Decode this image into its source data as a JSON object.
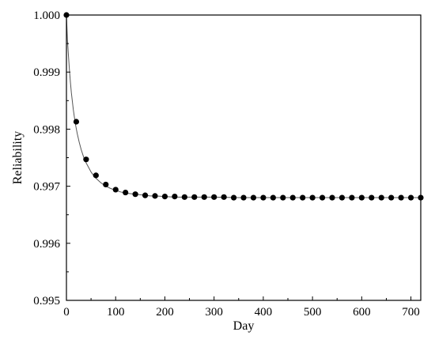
{
  "chart_data": {
    "type": "scatter",
    "title": "",
    "xlabel": "Day",
    "ylabel": "Reliability",
    "xlim": [
      0,
      720
    ],
    "ylim": [
      0.995,
      1.0
    ],
    "xticks": [
      0,
      100,
      200,
      300,
      400,
      500,
      600,
      700
    ],
    "yticks": [
      0.995,
      0.996,
      0.997,
      0.998,
      0.999,
      1.0
    ],
    "xtick_labels": [
      "0",
      "100",
      "200",
      "300",
      "400",
      "500",
      "600",
      "700"
    ],
    "ytick_labels": [
      "0.995",
      "0.996",
      "0.997",
      "0.998",
      "0.999",
      "1.000"
    ],
    "grid": false,
    "legend": "none",
    "series": [
      {
        "style": "markers",
        "color": "#000000",
        "x": [
          0,
          20,
          40,
          60,
          80,
          100,
          120,
          140,
          160,
          180,
          200,
          220,
          240,
          260,
          280,
          300,
          320,
          340,
          360,
          380,
          400,
          420,
          440,
          460,
          480,
          500,
          520,
          540,
          560,
          580,
          600,
          620,
          640,
          660,
          680,
          700,
          720
        ],
        "y": [
          1.0,
          0.99813,
          0.99747,
          0.99719,
          0.99703,
          0.99694,
          0.99689,
          0.99686,
          0.99684,
          0.99683,
          0.99682,
          0.99682,
          0.99681,
          0.99681,
          0.99681,
          0.99681,
          0.99681,
          0.9968,
          0.9968,
          0.9968,
          0.9968,
          0.9968,
          0.9968,
          0.9968,
          0.9968,
          0.9968,
          0.9968,
          0.9968,
          0.9968,
          0.9968,
          0.9968,
          0.9968,
          0.9968,
          0.9968,
          0.9968,
          0.9968,
          0.9968
        ]
      },
      {
        "style": "line",
        "color": "#555555",
        "x": [
          0,
          2,
          4,
          6,
          8,
          10,
          14,
          18,
          22,
          26,
          30,
          35,
          40,
          45,
          50,
          55,
          60,
          70,
          80,
          90,
          100,
          110,
          120,
          130,
          140,
          150,
          160,
          170,
          180,
          200,
          220,
          240,
          260,
          280,
          300,
          350,
          400,
          450,
          500,
          550,
          600,
          650,
          700,
          720
        ],
        "y": [
          1.0,
          0.99957,
          0.9993,
          0.99905,
          0.99883,
          0.99864,
          0.99834,
          0.9981,
          0.99792,
          0.99777,
          0.99764,
          0.99751,
          0.99741,
          0.99733,
          0.99725,
          0.99719,
          0.99714,
          0.99706,
          0.997,
          0.99696,
          0.99693,
          0.9969,
          0.99688,
          0.99687,
          0.99686,
          0.99685,
          0.99684,
          0.99683,
          0.99683,
          0.99682,
          0.99681,
          0.99681,
          0.99681,
          0.99681,
          0.99681,
          0.9968,
          0.9968,
          0.9968,
          0.9968,
          0.9968,
          0.9968,
          0.9968,
          0.9968,
          0.9968
        ]
      }
    ]
  }
}
